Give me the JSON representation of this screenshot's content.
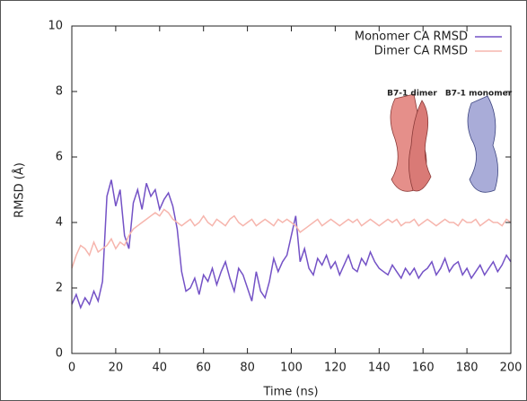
{
  "chart_data": {
    "type": "line",
    "xlabel": "Time (ns)",
    "ylabel": "RMSD (Å)",
    "x": [
      0,
      2,
      4,
      6,
      8,
      10,
      12,
      14,
      16,
      18,
      20,
      22,
      24,
      26,
      28,
      30,
      32,
      34,
      36,
      38,
      40,
      42,
      44,
      46,
      48,
      50,
      52,
      54,
      56,
      58,
      60,
      62,
      64,
      66,
      68,
      70,
      72,
      74,
      76,
      78,
      80,
      82,
      84,
      86,
      88,
      90,
      92,
      94,
      96,
      98,
      100,
      102,
      104,
      106,
      108,
      110,
      112,
      114,
      116,
      118,
      120,
      122,
      124,
      126,
      128,
      130,
      132,
      134,
      136,
      138,
      140,
      142,
      144,
      146,
      148,
      150,
      152,
      154,
      156,
      158,
      160,
      162,
      164,
      166,
      168,
      170,
      172,
      174,
      176,
      178,
      180,
      182,
      184,
      186,
      188,
      190,
      192,
      194,
      196,
      198,
      200
    ],
    "series": [
      {
        "name": "Monomer CA RMSD",
        "color": "#7452c6",
        "values": [
          1.5,
          1.8,
          1.4,
          1.7,
          1.5,
          1.9,
          1.6,
          2.2,
          4.8,
          5.3,
          4.5,
          5.0,
          3.6,
          3.2,
          4.6,
          5.0,
          4.4,
          5.2,
          4.8,
          5.0,
          4.4,
          4.7,
          4.9,
          4.5,
          3.8,
          2.5,
          1.9,
          2.0,
          2.3,
          1.8,
          2.4,
          2.2,
          2.6,
          2.1,
          2.5,
          2.8,
          2.3,
          1.9,
          2.6,
          2.4,
          2.0,
          1.6,
          2.5,
          1.9,
          1.7,
          2.2,
          2.9,
          2.5,
          2.8,
          3.0,
          3.6,
          4.2,
          2.8,
          3.2,
          2.6,
          2.4,
          2.9,
          2.7,
          3.0,
          2.6,
          2.8,
          2.4,
          2.7,
          3.0,
          2.6,
          2.5,
          2.9,
          2.7,
          3.1,
          2.8,
          2.6,
          2.5,
          2.4,
          2.7,
          2.5,
          2.3,
          2.6,
          2.4,
          2.6,
          2.3,
          2.5,
          2.6,
          2.8,
          2.4,
          2.6,
          2.9,
          2.5,
          2.7,
          2.8,
          2.4,
          2.6,
          2.3,
          2.5,
          2.7,
          2.4,
          2.6,
          2.8,
          2.5,
          2.7,
          3.0,
          2.8
        ]
      },
      {
        "name": "Dimer CA RMSD",
        "color": "#f6b5ad",
        "values": [
          2.6,
          3.0,
          3.3,
          3.2,
          3.0,
          3.4,
          3.1,
          3.2,
          3.3,
          3.5,
          3.2,
          3.4,
          3.3,
          3.6,
          3.8,
          3.9,
          4.0,
          4.1,
          4.2,
          4.3,
          4.2,
          4.4,
          4.3,
          4.1,
          4.0,
          3.9,
          4.0,
          4.1,
          3.9,
          4.0,
          4.2,
          4.0,
          3.9,
          4.1,
          4.0,
          3.9,
          4.1,
          4.2,
          4.0,
          3.9,
          4.0,
          4.1,
          3.9,
          4.0,
          4.1,
          4.0,
          3.9,
          4.1,
          4.0,
          4.1,
          4.0,
          3.9,
          3.7,
          3.8,
          3.9,
          4.0,
          4.1,
          3.9,
          4.0,
          4.1,
          4.0,
          3.9,
          4.0,
          4.1,
          4.0,
          4.1,
          3.9,
          4.0,
          4.1,
          4.0,
          3.9,
          4.0,
          4.1,
          4.0,
          4.1,
          3.9,
          4.0,
          4.0,
          4.1,
          3.9,
          4.0,
          4.1,
          4.0,
          3.9,
          4.0,
          4.1,
          4.0,
          4.0,
          3.9,
          4.1,
          4.0,
          4.0,
          4.1,
          3.9,
          4.0,
          4.1,
          4.0,
          4.0,
          3.9,
          4.1,
          4.0
        ]
      }
    ],
    "xlim": [
      0,
      200
    ],
    "xticks": [
      0,
      20,
      40,
      60,
      80,
      100,
      120,
      140,
      160,
      180,
      200
    ],
    "ylim": [
      0,
      10
    ],
    "yticks": [
      0,
      2,
      4,
      6,
      8,
      10
    ],
    "legend": "upper right",
    "annotations": [
      "B7-1 dimer",
      "B7-1 monomer"
    ]
  }
}
